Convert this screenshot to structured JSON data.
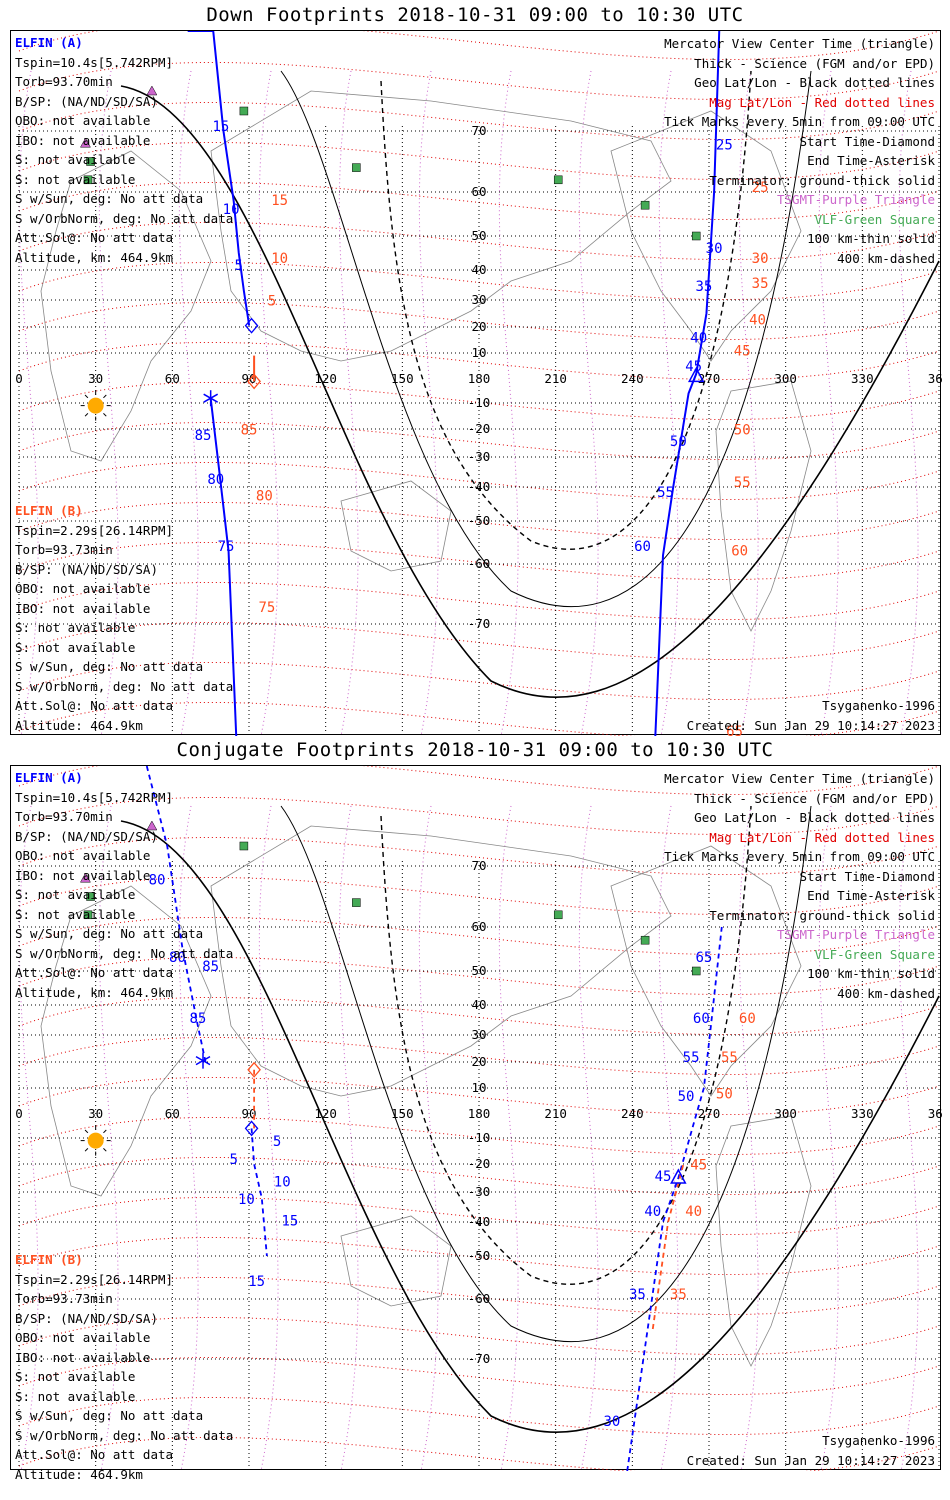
{
  "colors": {
    "sc_a": "#0000ff",
    "sc_b": "#ff5020",
    "mag": "#e00000",
    "tsgmt": "#cc66cc",
    "vlf": "#44aa55",
    "sun": "#ffaa00",
    "land": "#888888"
  },
  "info_a": {
    "name": "ELFIN (A)",
    "lines": [
      "Tspin=10.4s[5.742RPM]",
      "Torb=93.70min",
      "B/SP: (NA/ND/SD/SA)",
      "OBO: not available",
      "IBO: not available",
      "S: not available",
      "S: not available",
      "S w/Sun, deg: No att data",
      "S w/OrbNorm, deg: No att data",
      "Att.Sol@: No att data",
      "Altitude, km: 464.9km"
    ]
  },
  "info_b": {
    "name": "ELFIN (B)",
    "lines": [
      "Tspin=2.29s[26.14RPM]",
      "Torb=93.73min",
      "B/SP: (NA/ND/SD/SA)",
      "OBO: not available",
      "IBO: not available",
      "S: not available",
      "S: not available",
      "S w/Sun, deg: No att data",
      "S w/OrbNorm, deg: No att data",
      "Att.Sol@: No att data",
      "Altitude: 464.9km"
    ]
  },
  "legend": [
    {
      "text": "Mercator View Center Time (triangle)",
      "color": "#000000"
    },
    {
      "text": "Thick - Science (FGM and/or EPD)",
      "color": "#000000"
    },
    {
      "text": "Geo Lat/Lon - Black dotted lines",
      "color": "#000000"
    },
    {
      "text": "Mag Lat/Lon - Red dotted lines",
      "color": "#e00000"
    },
    {
      "text": "Tick Marks every 5min from 09:00 UTC",
      "color": "#000000"
    },
    {
      "text": "Start Time-Diamond",
      "color": "#000000"
    },
    {
      "text": "End Time-Asterisk",
      "color": "#000000"
    },
    {
      "text": "Terminator: ground-thick solid",
      "color": "#000000"
    },
    {
      "text": "TSGMT-Purple Triangle",
      "color": "#cc66cc"
    },
    {
      "text": "VLF-Green Square",
      "color": "#44aa55"
    },
    {
      "text": "100 km-thin solid",
      "color": "#000000"
    },
    {
      "text": "400 km-dashed",
      "color": "#000000"
    }
  ],
  "footer": {
    "model": "Tsyganenko-1996",
    "created": "Created: Sun Jan 29 10:14:27 2023"
  },
  "chart_data": [
    {
      "type": "scatter",
      "title": "Down Footprints 2018-10-31 09:00 to 10:30 UTC",
      "xlim": [
        0,
        360
      ],
      "ylim": [
        -80,
        80
      ],
      "x_ticks": [
        "0",
        "30",
        "60",
        "90",
        "120",
        "150",
        "180",
        "210",
        "240",
        "270",
        "300",
        "330",
        "360"
      ],
      "y_ticks": [
        "70",
        "60",
        "50",
        "40",
        "30",
        "20",
        "10",
        "-10",
        "-20",
        "-30",
        "-40",
        "-50",
        "-60",
        "-70"
      ],
      "series": [
        {
          "label_key": "info_a.name",
          "line_style": "solid",
          "points": [
            [
              66,
              88
            ],
            [
              76,
              82
            ],
            [
              80,
              70
            ],
            [
              84,
              58
            ],
            [
              86,
              45
            ],
            [
              88,
              33
            ],
            [
              90,
              21
            ],
            [
              90,
              20.5
            ]
          ],
          "ticks": [
            [
              79,
              70,
              "15"
            ],
            [
              83,
              55,
              "10"
            ],
            [
              86,
              40,
              "5"
            ]
          ]
        },
        {
          "label_key": "info_a.name",
          "line_style": "solid",
          "points": [
            [
              249,
              -80
            ],
            [
              252,
              -58
            ],
            [
              256,
              -40
            ],
            [
              262,
              -6
            ],
            [
              265,
              2
            ],
            [
              269,
              25
            ],
            [
              272,
              60
            ],
            [
              274,
              80
            ]
          ],
          "ticks": [
            [
              244,
              -57,
              "60"
            ],
            [
              253,
              -43,
              "55"
            ],
            [
              258,
              -26,
              "50"
            ],
            [
              264,
              3,
              "45"
            ],
            [
              266,
              14,
              "40"
            ],
            [
              268,
              33,
              "35"
            ],
            [
              272,
              45,
              "30"
            ],
            [
              276,
              67,
              "25"
            ]
          ]
        },
        {
          "label_key": "info_a.name",
          "line_style": "solid",
          "points": [
            [
              75,
              -8
            ],
            [
              78,
              -32
            ],
            [
              82,
              -57
            ],
            [
              85,
              -80
            ]
          ],
          "ticks": [
            [
              72,
              -24,
              "85"
            ],
            [
              77,
              -39,
              "80"
            ],
            [
              81,
              -57,
              "75"
            ]
          ]
        },
        {
          "label_key": "info_b.name",
          "line_style": "solid",
          "points": [
            [
              92,
              9
            ],
            [
              92,
              -1
            ]
          ],
          "ticks": [
            [
              99,
              28,
              "5"
            ],
            [
              102,
              42,
              "10"
            ],
            [
              102,
              57,
              "15"
            ],
            [
              290,
              60,
              "25"
            ],
            [
              290,
              42,
              "30"
            ],
            [
              290,
              34,
              "35"
            ],
            [
              289,
              21,
              "40"
            ],
            [
              283,
              9,
              "45"
            ],
            [
              283,
              -22,
              "50"
            ],
            [
              283,
              -40,
              "55"
            ],
            [
              282,
              -58,
              "60"
            ],
            [
              280,
              -80,
              "65"
            ],
            [
              90,
              -22,
              "85"
            ],
            [
              96,
              -44,
              "80"
            ],
            [
              97,
              -68,
              "75"
            ]
          ]
        }
      ],
      "markers": [
        {
          "shape": "diamond",
          "lon": 91,
          "lat": 20.5,
          "sc": "A"
        },
        {
          "shape": "diamond",
          "lon": 92,
          "lat": -1,
          "sc": "B"
        },
        {
          "shape": "triangle",
          "lon": 265,
          "lat": 1,
          "sc": "A"
        },
        {
          "shape": "asterisk",
          "lon": 75,
          "lat": -8,
          "sc": "A"
        },
        {
          "shape": "sun",
          "lon": 30,
          "lat": -11,
          "sc": "none"
        }
      ],
      "vlf": [
        [
          88,
          72
        ],
        [
          28,
          65
        ],
        [
          27,
          62
        ],
        [
          132,
          64
        ],
        [
          211,
          62
        ],
        [
          245,
          57
        ],
        [
          265,
          50
        ]
      ],
      "tsgmt": [
        [
          26,
          68
        ],
        [
          52,
          74
        ]
      ]
    },
    {
      "type": "scatter",
      "title": "Conjugate Footprints 2018-10-31 09:00 to 10:30 UTC",
      "xlim": [
        0,
        360
      ],
      "ylim": [
        -80,
        80
      ],
      "x_ticks": [
        "0",
        "30",
        "60",
        "90",
        "120",
        "150",
        "180",
        "210",
        "240",
        "270",
        "300",
        "330",
        "360"
      ],
      "y_ticks": [
        "70",
        "60",
        "50",
        "40",
        "30",
        "20",
        "10",
        "-10",
        "-20",
        "-30",
        "-40",
        "-50",
        "-60",
        "-70"
      ],
      "series": [
        {
          "label_key": "info_a.name",
          "line_style": "dashed",
          "points": [
            [
              50,
              82
            ],
            [
              58,
              72
            ],
            [
              64,
              55
            ],
            [
              70,
              33
            ],
            [
              73,
              20
            ]
          ],
          "ticks": [
            [
              62,
              52,
              "80"
            ],
            [
              70,
              34,
              "85"
            ],
            [
              54,
              67,
              "80"
            ],
            [
              75,
              50,
              "85"
            ]
          ]
        },
        {
          "label_key": "info_a.name",
          "line_style": "dashed",
          "points": [
            [
              91,
              -6
            ],
            [
              92,
              -20
            ],
            [
              95,
              -32
            ],
            [
              97,
              -50
            ]
          ],
          "ticks": [
            [
              84,
              -20,
              "5"
            ],
            [
              89,
              -34,
              "10"
            ],
            [
              93,
              -57,
              "15"
            ],
            [
              101,
              -13,
              "5"
            ],
            [
              103,
              -28,
              "10"
            ],
            [
              106,
              -41,
              "15"
            ]
          ]
        },
        {
          "label_key": "info_b.name",
          "line_style": "dashed",
          "points": [
            [
              92,
              17
            ],
            [
              92,
              -6
            ]
          ],
          "ticks": []
        },
        {
          "label_key": "info_a.name",
          "line_style": "dashed",
          "points": [
            [
              238,
              -80
            ],
            [
              246,
              -65
            ],
            [
              252,
              -40
            ],
            [
              258,
              -25
            ],
            [
              264,
              -4
            ],
            [
              268,
              10
            ],
            [
              271,
              35
            ],
            [
              275,
              60
            ]
          ],
          "ticks": [
            [
              232,
              -76,
              "30"
            ],
            [
              242,
              -60,
              "35"
            ],
            [
              248,
              -38,
              "40"
            ],
            [
              252,
              -26,
              "45"
            ],
            [
              261,
              5,
              "50"
            ],
            [
              263,
              20,
              "55"
            ],
            [
              267,
              34,
              "60"
            ],
            [
              268,
              52,
              "65"
            ]
          ]
        },
        {
          "label_key": "info_b.name",
          "line_style": "dashed",
          "points": [
            [
              248,
              -65
            ],
            [
              254,
              -40
            ],
            [
              260,
              -20
            ]
          ],
          "ticks": [
            [
              258,
              -60,
              "35"
            ],
            [
              264,
              -38,
              "40"
            ],
            [
              266,
              -22,
              "45"
            ],
            [
              276,
              6,
              "50"
            ],
            [
              278,
              20,
              "55"
            ],
            [
              285,
              34,
              "60"
            ]
          ]
        }
      ],
      "markers": [
        {
          "shape": "diamond",
          "lon": 91,
          "lat": -6,
          "sc": "A"
        },
        {
          "shape": "diamond",
          "lon": 92,
          "lat": 17,
          "sc": "B"
        },
        {
          "shape": "triangle",
          "lon": 258,
          "lat": -25,
          "sc": "A"
        },
        {
          "shape": "asterisk",
          "lon": 72,
          "lat": 20.5,
          "sc": "A"
        },
        {
          "shape": "sun",
          "lon": 30,
          "lat": -11,
          "sc": "none"
        }
      ],
      "vlf": [
        [
          88,
          72
        ],
        [
          28,
          65
        ],
        [
          27,
          62
        ],
        [
          132,
          64
        ],
        [
          211,
          62
        ],
        [
          245,
          57
        ],
        [
          265,
          50
        ]
      ],
      "tsgmt": [
        [
          26,
          68
        ],
        [
          52,
          74
        ]
      ]
    }
  ]
}
